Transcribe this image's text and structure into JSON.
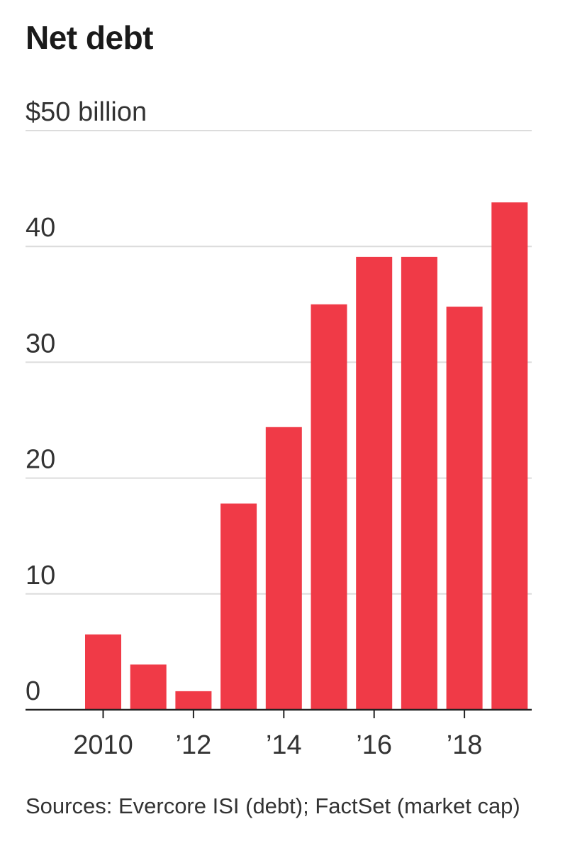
{
  "title": "Net debt",
  "source": "Sources: Evercore ISI (debt); FactSet (market cap)",
  "chart_data": {
    "type": "bar",
    "title": "Net debt",
    "ylabel": "",
    "xlabel": "",
    "unit_label": "$50 billion",
    "categories": [
      "2010",
      "2011",
      "2012",
      "2013",
      "2014",
      "2015",
      "2016",
      "2017",
      "2018",
      "2019"
    ],
    "values": [
      6.5,
      3.9,
      1.6,
      17.8,
      24.4,
      35.0,
      39.1,
      39.1,
      34.8,
      43.8
    ],
    "ylim": [
      0,
      50
    ],
    "yticks": [
      {
        "value": 50,
        "label": "$50 billion"
      },
      {
        "value": 40,
        "label": "40"
      },
      {
        "value": 30,
        "label": "30"
      },
      {
        "value": 20,
        "label": "20"
      },
      {
        "value": 10,
        "label": "10"
      },
      {
        "value": 0,
        "label": "0"
      }
    ],
    "xticks": [
      {
        "category": "2010",
        "label": "2010"
      },
      {
        "category": "2012",
        "label": "’12"
      },
      {
        "category": "2014",
        "label": "’14"
      },
      {
        "category": "2016",
        "label": "’16"
      },
      {
        "category": "2018",
        "label": "’18"
      }
    ],
    "bar_color": "#f03a47",
    "grid": true,
    "legend": "none"
  }
}
